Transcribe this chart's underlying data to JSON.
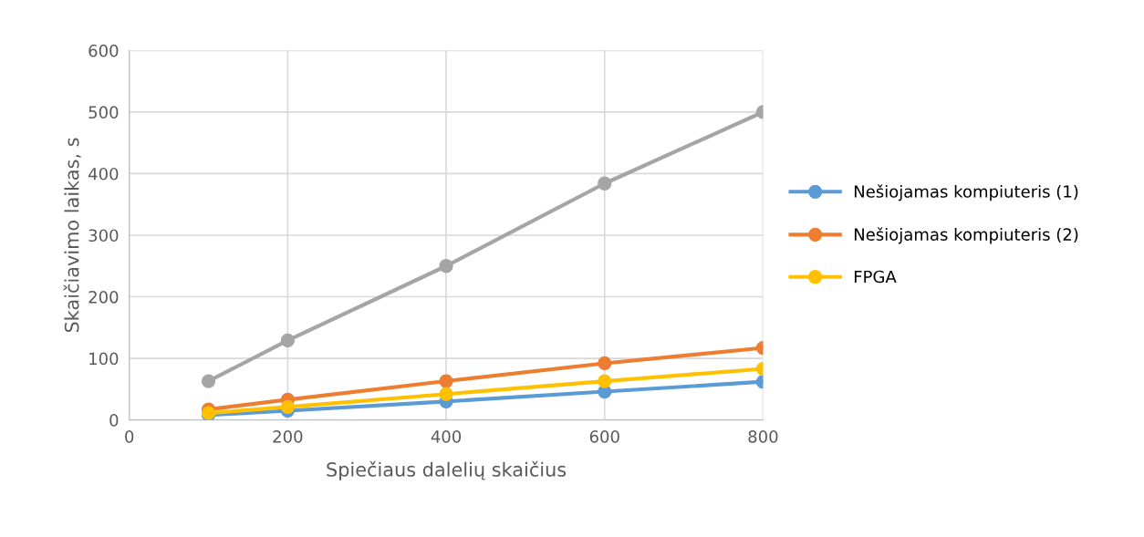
{
  "chart_data": {
    "type": "line",
    "xlabel": "Spiečiaus dalelių skaičius",
    "ylabel": "Skaičiavimo laikas, s",
    "x": [
      100,
      200,
      400,
      600,
      800
    ],
    "series": [
      {
        "name": "Nešiojamas kompiuteris (1)",
        "color": "#5b9bd5",
        "values": [
          8,
          15,
          30,
          46,
          62
        ]
      },
      {
        "name": "Nešiojamas kompiuteris (2)",
        "color": "#ed7d31",
        "values": [
          17,
          33,
          63,
          92,
          117
        ]
      },
      {
        "color": "#a5a5a5",
        "values": [
          63,
          129,
          250,
          384,
          500
        ]
      },
      {
        "name": "FPGA",
        "color": "#ffc000",
        "values": [
          11,
          21,
          42,
          63,
          83
        ]
      }
    ],
    "xlim": [
      0,
      800
    ],
    "xticks": [
      0,
      200,
      400,
      600,
      800
    ],
    "ylim": [
      0,
      600
    ],
    "yticks": [
      0,
      100,
      200,
      300,
      400,
      500,
      600
    ],
    "grid": true,
    "legend": "right",
    "marker": "circle",
    "line_style": "solid"
  }
}
